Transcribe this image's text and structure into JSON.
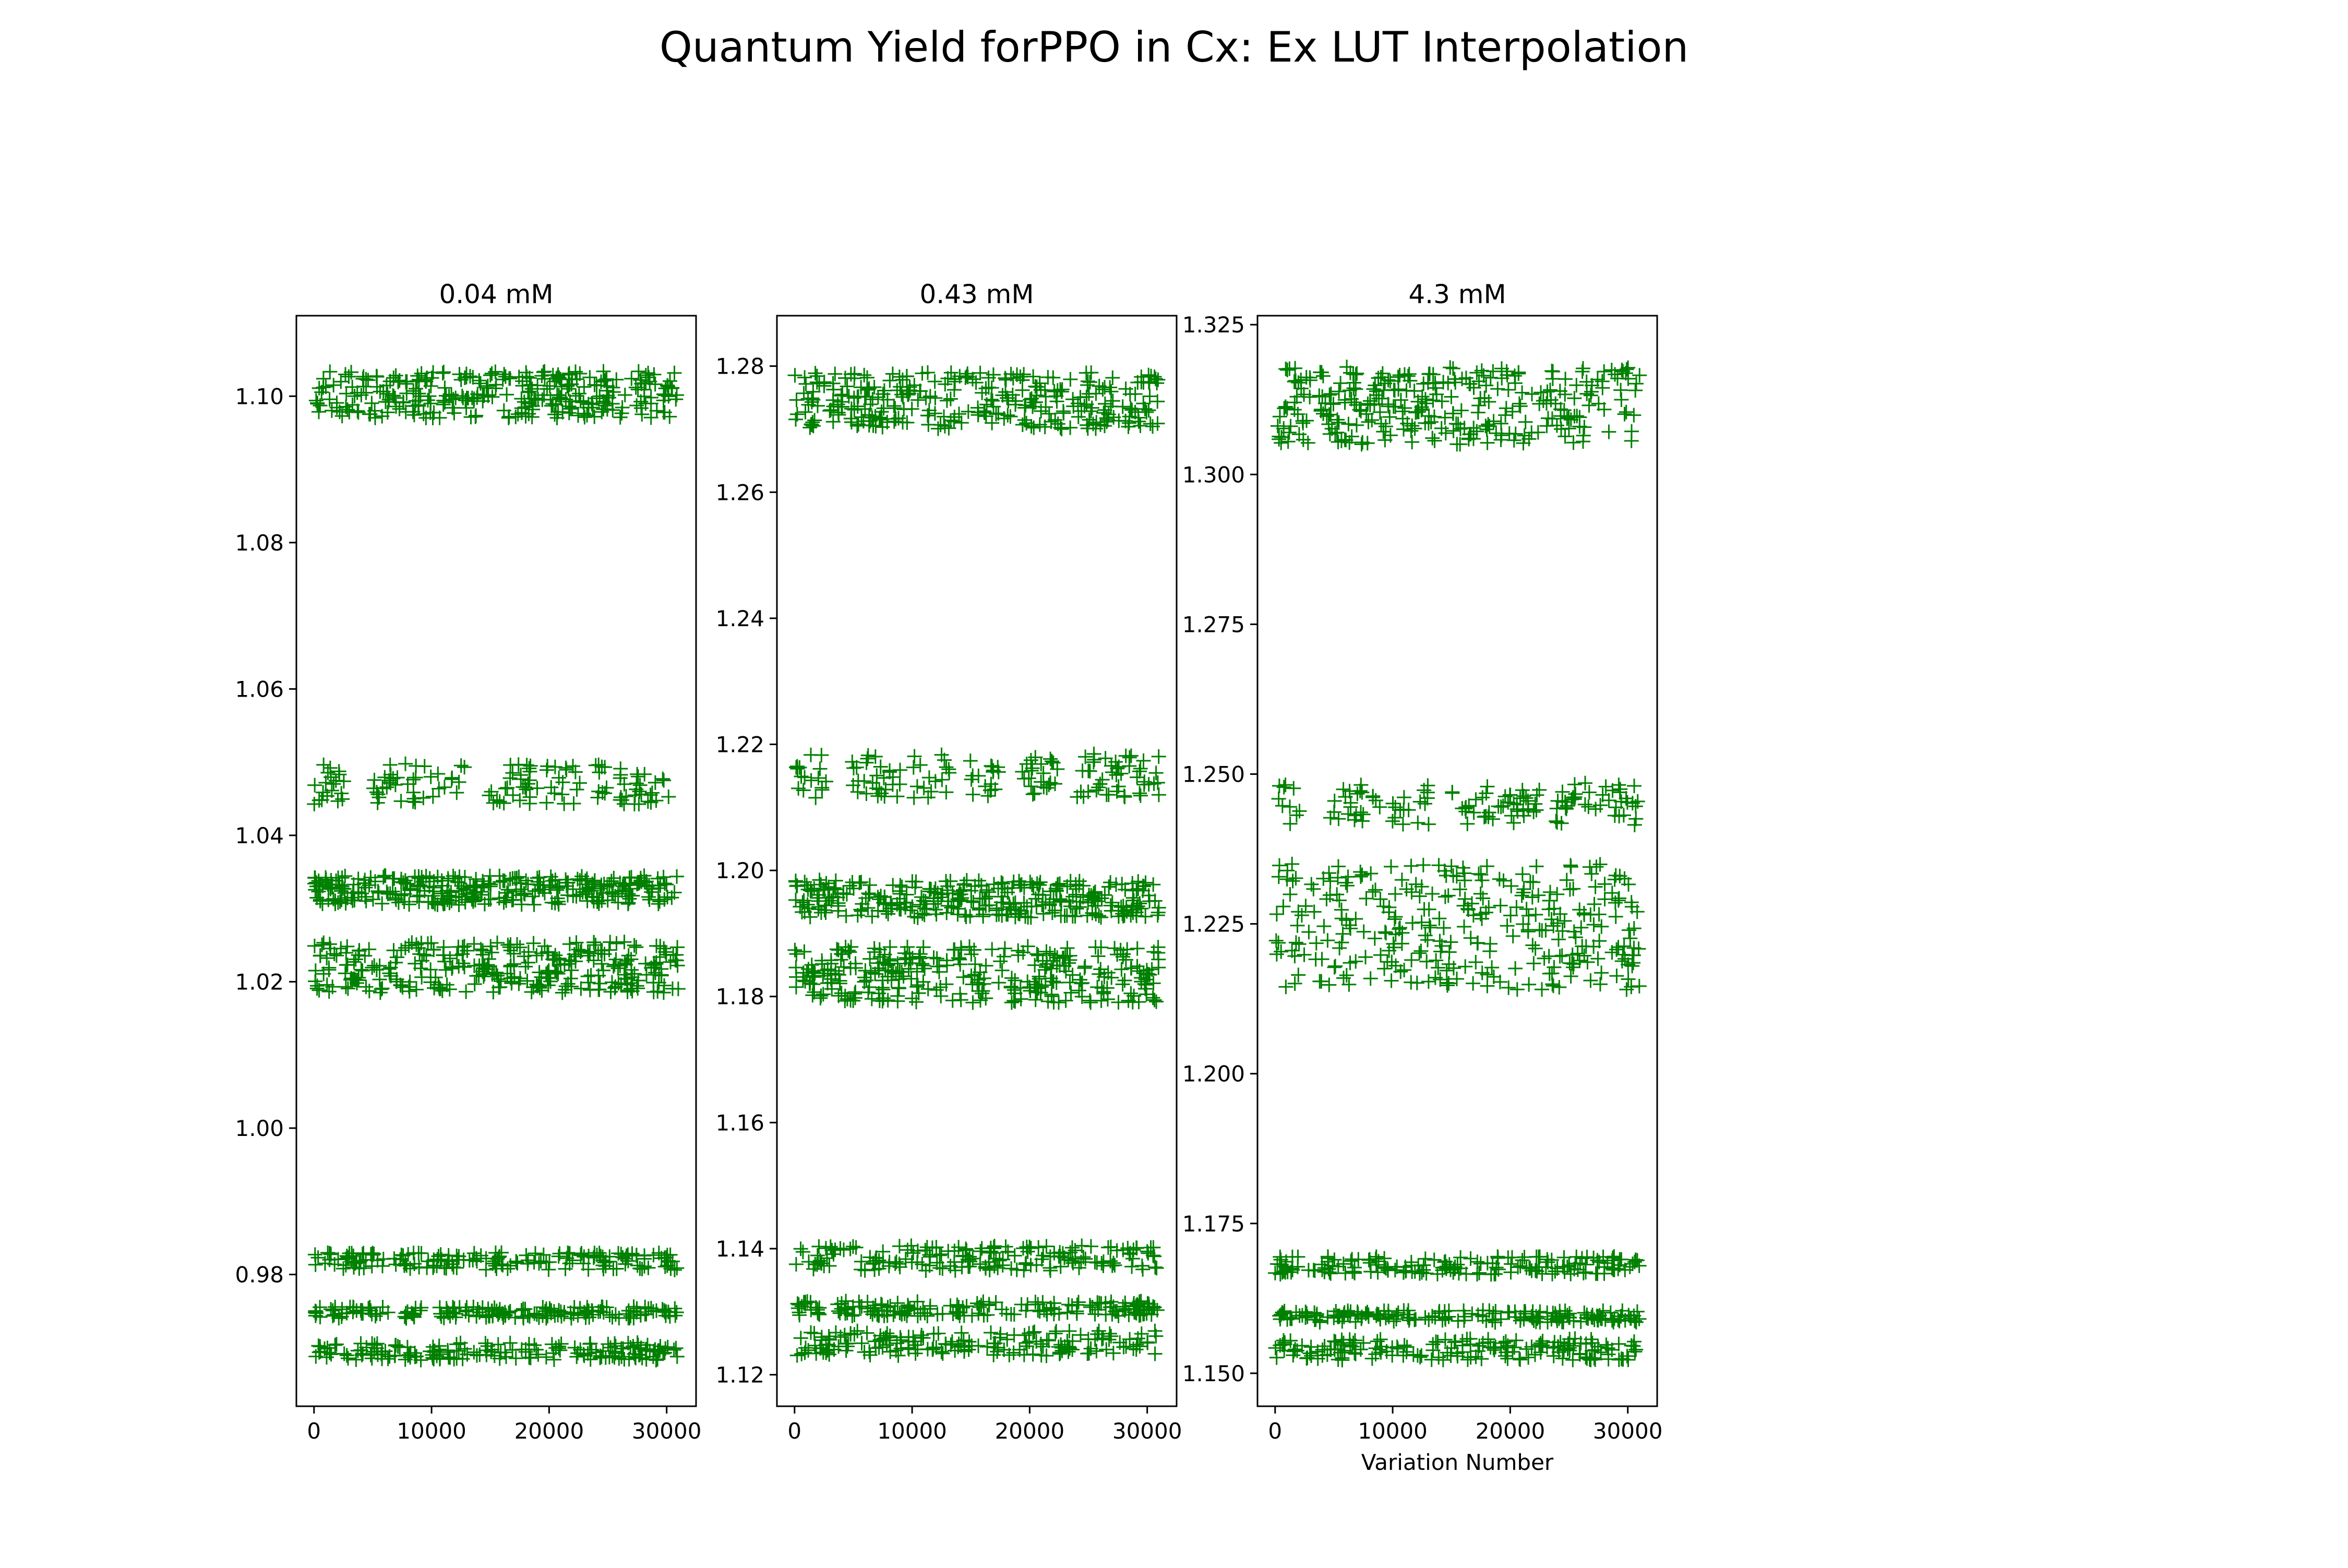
{
  "figure": {
    "title": "Quantum Yield forPPO in Cx: Ex LUT Interpolation"
  },
  "colors": {
    "marker": "#008000",
    "axes": "#000000",
    "background": "#ffffff"
  },
  "chart_data": [
    {
      "type": "scatter",
      "title": "0.04 mM",
      "xlabel": "",
      "ylabel": "",
      "marker": "+",
      "grid": false,
      "xlim": [
        -1500,
        32500
      ],
      "ylim": [
        0.962,
        1.111
      ],
      "xticks": [
        0,
        10000,
        20000,
        30000
      ],
      "xtick_labels": [
        "0",
        "10000",
        "20000",
        "30000"
      ],
      "yticks": [
        0.98,
        1.0,
        1.02,
        1.04,
        1.06,
        1.08,
        1.1
      ],
      "ytick_labels": [
        "0.98",
        "1.00",
        "1.02",
        "1.04",
        "1.06",
        "1.08",
        "1.10"
      ],
      "x_range": [
        0,
        31000
      ],
      "bands": [
        {
          "center": 1.1002,
          "halfwidth": 0.0032,
          "density": "dense"
        },
        {
          "center": 1.047,
          "halfwidth": 0.0028,
          "density": "sparse"
        },
        {
          "center": 1.0325,
          "halfwidth": 0.002,
          "density": "dense"
        },
        {
          "center": 1.022,
          "halfwidth": 0.0035,
          "density": "dense"
        },
        {
          "center": 0.9818,
          "halfwidth": 0.0012,
          "density": "medium"
        },
        {
          "center": 0.9748,
          "halfwidth": 0.0008,
          "density": "medium"
        },
        {
          "center": 0.9695,
          "halfwidth": 0.0012,
          "density": "medium"
        }
      ]
    },
    {
      "type": "scatter",
      "title": "0.43 mM",
      "xlabel": "",
      "ylabel": "",
      "marker": "+",
      "grid": false,
      "xlim": [
        -1500,
        32500
      ],
      "ylim": [
        1.115,
        1.288
      ],
      "xticks": [
        0,
        10000,
        20000,
        30000
      ],
      "xtick_labels": [
        "0",
        "10000",
        "20000",
        "30000"
      ],
      "yticks": [
        1.12,
        1.14,
        1.16,
        1.18,
        1.2,
        1.22,
        1.24,
        1.26,
        1.28
      ],
      "ytick_labels": [
        "1.12",
        "1.14",
        "1.16",
        "1.18",
        "1.20",
        "1.22",
        "1.24",
        "1.26",
        "1.28"
      ],
      "x_range": [
        0,
        31000
      ],
      "bands": [
        {
          "center": 1.2745,
          "halfwidth": 0.0045,
          "density": "dense"
        },
        {
          "center": 1.215,
          "halfwidth": 0.0035,
          "density": "sparse"
        },
        {
          "center": 1.1955,
          "halfwidth": 0.003,
          "density": "dense"
        },
        {
          "center": 1.1835,
          "halfwidth": 0.0045,
          "density": "dense"
        },
        {
          "center": 1.1385,
          "halfwidth": 0.002,
          "density": "medium"
        },
        {
          "center": 1.1305,
          "halfwidth": 0.0012,
          "density": "medium"
        },
        {
          "center": 1.125,
          "halfwidth": 0.002,
          "density": "medium"
        }
      ]
    },
    {
      "type": "scatter",
      "title": "4.3 mM",
      "xlabel": "Variation Number",
      "ylabel": "",
      "marker": "+",
      "grid": false,
      "xlim": [
        -1500,
        32500
      ],
      "ylim": [
        1.1445,
        1.3265
      ],
      "xticks": [
        0,
        10000,
        20000,
        30000
      ],
      "xtick_labels": [
        "0",
        "10000",
        "20000",
        "30000"
      ],
      "yticks": [
        1.15,
        1.175,
        1.2,
        1.225,
        1.25,
        1.275,
        1.3,
        1.325
      ],
      "ytick_labels": [
        "1.150",
        "1.175",
        "1.200",
        "1.225",
        "1.250",
        "1.275",
        "1.300",
        "1.325"
      ],
      "x_range": [
        0,
        31000
      ],
      "bands": [
        {
          "center": 1.3115,
          "halfwidth": 0.0065,
          "density": "dense"
        },
        {
          "center": 1.245,
          "halfwidth": 0.0035,
          "density": "sparse"
        },
        {
          "center": 1.2245,
          "halfwidth": 0.0105,
          "density": "dense"
        },
        {
          "center": 1.168,
          "halfwidth": 0.0015,
          "density": "medium"
        },
        {
          "center": 1.1595,
          "halfwidth": 0.001,
          "density": "medium"
        },
        {
          "center": 1.154,
          "halfwidth": 0.0018,
          "density": "medium"
        }
      ]
    }
  ]
}
